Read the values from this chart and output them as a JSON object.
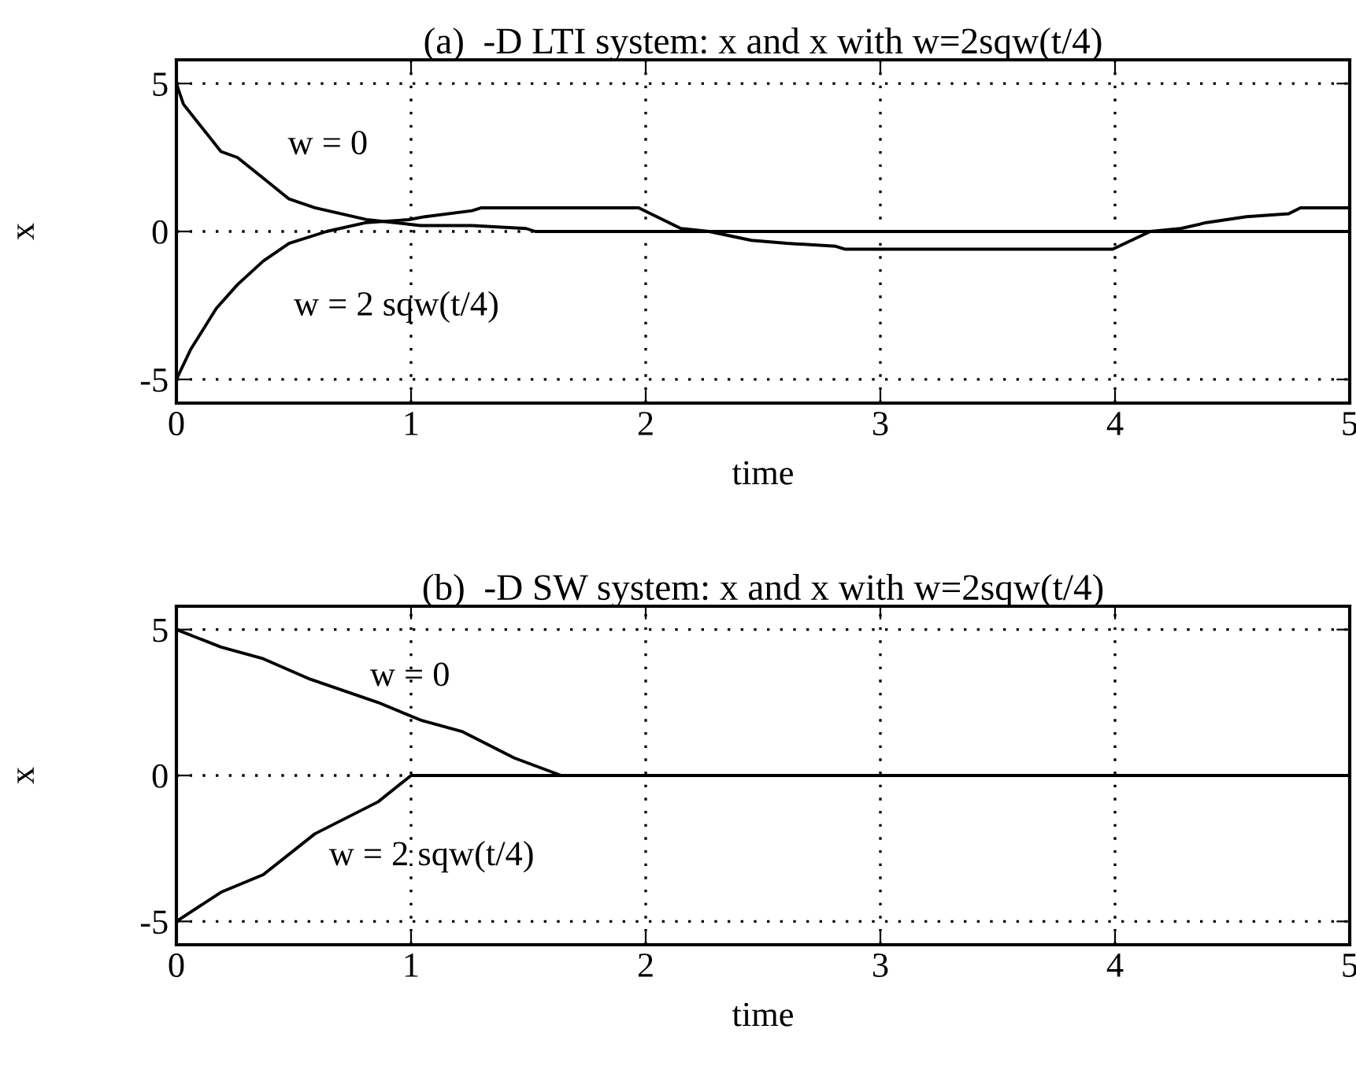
{
  "chart_data": [
    {
      "type": "line",
      "title": "(a)  -D LTI system: x and x with w=2sqw(t/4)",
      "xlabel": "time",
      "ylabel": "x",
      "xlim": [
        0,
        5
      ],
      "ylim": [
        -5.8,
        5.8
      ],
      "xticks": [
        0,
        1,
        2,
        3,
        4,
        5
      ],
      "yticks": [
        {
          "value": -5,
          "label": "-5"
        },
        0,
        5
      ],
      "grid": true,
      "legend": false,
      "series": [
        {
          "name": "w = 0",
          "color": "#000000",
          "x": [
            0,
            0.03,
            0.1,
            0.19,
            0.26,
            0.37,
            0.48,
            0.59,
            0.7,
            0.81,
            0.93,
            1.04,
            1.1,
            1.26,
            1.49,
            1.53,
            2.0,
            3.0,
            4.0,
            5.0
          ],
          "values": [
            5,
            4.3,
            3.6,
            2.7,
            2.5,
            1.8,
            1.1,
            0.8,
            0.6,
            0.4,
            0.3,
            0.2,
            0.2,
            0.2,
            0.1,
            0,
            0,
            0,
            0,
            0
          ]
        },
        {
          "name": "w = 2 sqw(t/4)",
          "color": "#000000",
          "x": [
            0,
            0.06,
            0.17,
            0.26,
            0.37,
            0.48,
            0.64,
            0.81,
            0.99,
            1.06,
            1.26,
            1.3,
            1.97,
            2.15,
            2.27,
            2.45,
            2.6,
            2.81,
            2.85,
            3.99,
            4.15,
            4.28,
            4.39,
            4.56,
            4.74,
            4.79,
            5.0
          ],
          "values": [
            -5,
            -4,
            -2.6,
            -1.8,
            -1,
            -0.4,
            0,
            0.3,
            0.4,
            0.5,
            0.7,
            0.8,
            0.8,
            0.1,
            0,
            -0.3,
            -0.4,
            -0.5,
            -0.6,
            -0.6,
            0,
            0.1,
            0.3,
            0.5,
            0.6,
            0.8,
            0.8
          ]
        }
      ]
    },
    {
      "type": "line",
      "title": "(b)  -D SW system: x and x with w=2sqw(t/4)",
      "xlabel": "time",
      "ylabel": "x",
      "xlim": [
        0,
        5
      ],
      "ylim": [
        -5.8,
        5.8
      ],
      "xticks": [
        0,
        1,
        2,
        3,
        4,
        5
      ],
      "yticks": [
        {
          "value": -5,
          "label": "-5"
        },
        0,
        5
      ],
      "grid": true,
      "legend": false,
      "series": [
        {
          "name": "w = 0",
          "color": "#000000",
          "x": [
            0,
            0.19,
            0.37,
            0.57,
            0.86,
            1.04,
            1.22,
            1.44,
            1.64,
            5.0
          ],
          "values": [
            5,
            4.4,
            4,
            3.3,
            2.5,
            1.9,
            1.5,
            0.6,
            0,
            0
          ]
        },
        {
          "name": "w = 2 sqw(t/4)",
          "color": "#000000",
          "x": [
            0,
            0.19,
            0.37,
            0.59,
            0.86,
            1.0,
            5.0
          ],
          "values": [
            -5,
            -4,
            -3.4,
            -2,
            -0.9,
            0,
            0
          ]
        }
      ]
    }
  ]
}
